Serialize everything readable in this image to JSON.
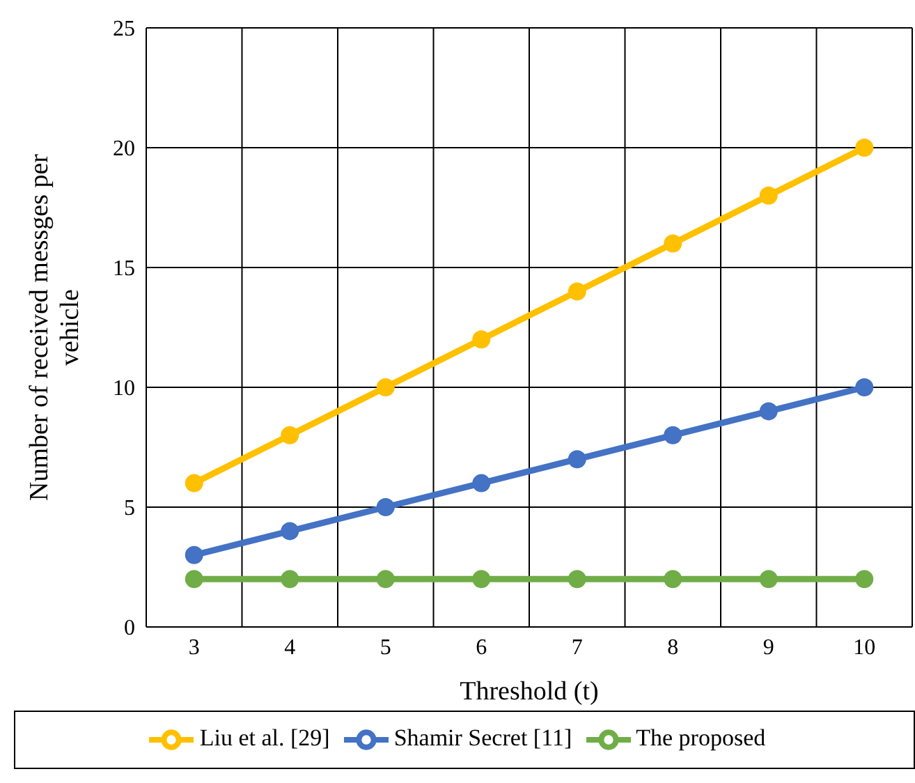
{
  "chart_data": {
    "type": "line",
    "xlabel": "Threshold (t)",
    "ylabel": "Number of received messges per vehicle",
    "categories": [
      "3",
      "4",
      "5",
      "6",
      "7",
      "8",
      "9",
      "10"
    ],
    "series": [
      {
        "name": "Liu et al. [29]",
        "color": "#ffc000",
        "values": [
          6,
          8,
          10,
          12,
          14,
          16,
          18,
          20
        ]
      },
      {
        "name": "Shamir Secret [11]",
        "color": "#4472c4",
        "values": [
          3,
          4,
          5,
          6,
          7,
          8,
          9,
          10
        ]
      },
      {
        "name": "The proposed",
        "color": "#70ad47",
        "values": [
          2,
          2,
          2,
          2,
          2,
          2,
          2,
          2
        ]
      }
    ],
    "ylim": [
      0,
      25
    ],
    "yticks": [
      0,
      5,
      10,
      15,
      20,
      25
    ],
    "grid": true,
    "legend": "bottom",
    "marker": "circle",
    "line_style": "solid"
  }
}
